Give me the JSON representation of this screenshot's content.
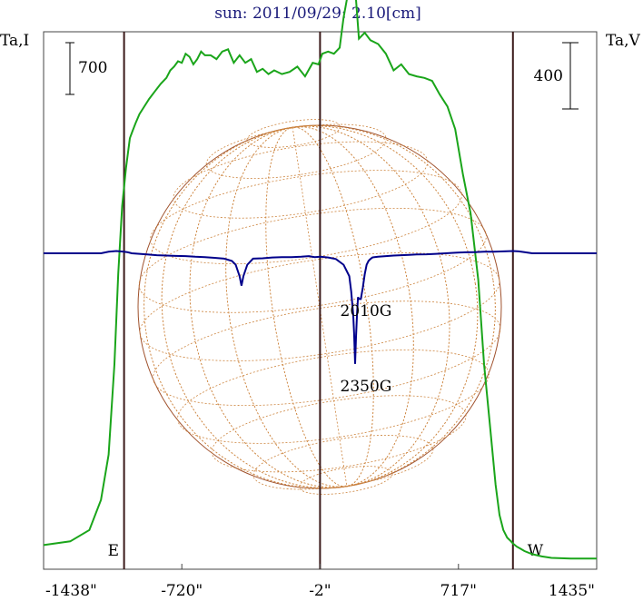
{
  "chart_data": {
    "type": "line",
    "title": "sun: 2011/09/29: 2.10[cm]",
    "left_axis_label": "Ta,I",
    "right_axis_label": "Ta,V",
    "left_scale_label": "700",
    "right_scale_label": "400",
    "x_ticks": [
      "-1438\"",
      "-720\"",
      "-2\"",
      "717\"",
      "1435\""
    ],
    "x_tick_values": [
      -1438,
      -720,
      -2,
      717,
      1435
    ],
    "xlim": [
      -1438,
      1435
    ],
    "limb_markers": [
      {
        "label": "E",
        "x": -1020
      },
      {
        "label": "W",
        "x": 1000
      }
    ],
    "center_line_x": -2,
    "annotations": [
      {
        "text": "2010G",
        "x": 180
      },
      {
        "text": "2350G",
        "x": 180
      }
    ],
    "colors": {
      "title": "#1a1a7a",
      "stokes_i": "#1aa51a",
      "stokes_v": "#00008b",
      "disk": "#a0522d",
      "grid": "#cd853f",
      "markers": "#3b1a1a"
    },
    "series": [
      {
        "id": "stokes_i",
        "x": [
          -1438,
          -1300,
          -1200,
          -1140,
          -1100,
          -1070,
          -1050,
          -1030,
          -1010,
          -990,
          -975,
          -960,
          -940,
          -920,
          -890,
          -860,
          -830,
          -800,
          -780,
          -760,
          -740,
          -720,
          -700,
          -680,
          -660,
          -640,
          -620,
          -600,
          -570,
          -540,
          -510,
          -480,
          -450,
          -420,
          -390,
          -360,
          -330,
          -300,
          -270,
          -240,
          -200,
          -160,
          -120,
          -80,
          -40,
          -10,
          10,
          40,
          70,
          100,
          120,
          140,
          160,
          180,
          200,
          230,
          260,
          300,
          340,
          380,
          420,
          460,
          500,
          540,
          580,
          620,
          660,
          700,
          740,
          780,
          820,
          850,
          880,
          910,
          930,
          950,
          970,
          990,
          1000,
          1010,
          1020,
          1040,
          1060,
          1100,
          1150,
          1200,
          1300,
          1435
        ],
        "values": [
          20,
          25,
          40,
          80,
          140,
          260,
          380,
          470,
          520,
          560,
          570,
          580,
          592,
          600,
          612,
          622,
          632,
          640,
          650,
          655,
          662,
          660,
          672,
          668,
          658,
          665,
          675,
          670,
          670,
          665,
          675,
          678,
          660,
          670,
          660,
          665,
          648,
          652,
          645,
          650,
          645,
          648,
          655,
          642,
          660,
          658,
          672,
          675,
          672,
          680,
          720,
          748,
          790,
          760,
          692,
          700,
          690,
          685,
          672,
          650,
          658,
          645,
          642,
          640,
          636,
          618,
          602,
          572,
          512,
          460,
          372,
          260,
          180,
          100,
          60,
          40,
          30,
          25,
          22,
          20,
          18,
          15,
          12,
          8,
          5,
          3,
          2,
          2
        ]
      },
      {
        "id": "stokes_v",
        "x": [
          -1438,
          -1140,
          -1100,
          -1060,
          -1020,
          -1000,
          -980,
          -900,
          -850,
          -800,
          -750,
          -700,
          -650,
          -600,
          -550,
          -500,
          -460,
          -440,
          -420,
          -410,
          -400,
          -380,
          -350,
          -300,
          -250,
          -200,
          -150,
          -100,
          -60,
          -30,
          0,
          40,
          80,
          120,
          150,
          160,
          170,
          175,
          180,
          185,
          190,
          195,
          200,
          210,
          220,
          230,
          240,
          250,
          260,
          270,
          280,
          300,
          340,
          380,
          420,
          460,
          500,
          550,
          600,
          650,
          700,
          750,
          800,
          850,
          900,
          950,
          1000,
          1030,
          1060,
          1100,
          1150,
          1200,
          1300,
          1435
        ],
        "values": [
          0,
          0,
          8,
          12,
          8,
          5,
          0,
          -6,
          -10,
          -12,
          -14,
          -15,
          -18,
          -20,
          -24,
          -28,
          -40,
          -60,
          -120,
          -170,
          -120,
          -60,
          -28,
          -26,
          -22,
          -20,
          -20,
          -18,
          -15,
          -20,
          -18,
          -22,
          -30,
          -60,
          -120,
          -200,
          -320,
          -420,
          -580,
          -440,
          -320,
          -230,
          -240,
          -240,
          -180,
          -110,
          -60,
          -40,
          -30,
          -22,
          -20,
          -18,
          -15,
          -12,
          -10,
          -8,
          -6,
          -5,
          -3,
          0,
          3,
          5,
          6,
          8,
          8,
          10,
          12,
          10,
          6,
          0,
          0,
          0,
          0,
          0
        ]
      }
    ]
  }
}
